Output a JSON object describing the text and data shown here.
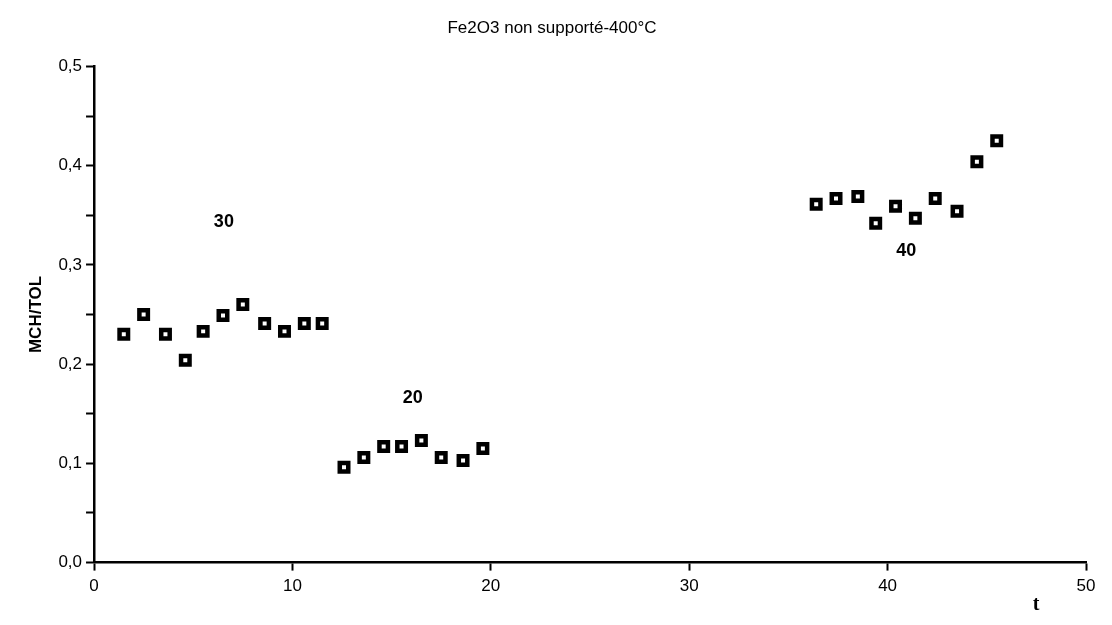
{
  "chart_data": {
    "type": "scatter",
    "title": "Fe2O3 non supporté-400°C",
    "xlabel": "t",
    "ylabel": "MCH/TOL",
    "series": [
      {
        "color": "#000000",
        "x": [
          1.5,
          2.5,
          3.6,
          4.6,
          5.5,
          6.5,
          7.5,
          8.6,
          9.6,
          10.6,
          11.5
        ],
        "values": [
          0.23,
          0.25,
          0.23,
          0.204,
          0.233,
          0.249,
          0.26,
          0.241,
          0.233,
          0.241,
          0.241
        ]
      },
      {
        "color": "#000000",
        "x": [
          12.6,
          13.6,
          14.6,
          15.5,
          16.5,
          17.5,
          18.6,
          19.6
        ],
        "values": [
          0.096,
          0.106,
          0.117,
          0.117,
          0.123,
          0.106,
          0.103,
          0.115
        ]
      },
      {
        "color": "#000000",
        "x": [
          36.4,
          37.4,
          38.5,
          39.4,
          40.4,
          41.4,
          42.4,
          43.5,
          44.5,
          45.5
        ],
        "values": [
          0.361,
          0.367,
          0.369,
          0.342,
          0.359,
          0.347,
          0.367,
          0.354,
          0.404,
          0.425
        ]
      }
    ],
    "annotations": [
      "30",
      "20",
      "40"
    ],
    "xlim": [
      0,
      50
    ],
    "xticks": [
      0,
      10,
      20,
      30,
      40,
      50
    ],
    "ylim": [
      0,
      0.5
    ],
    "yticks": [
      {
        "value": 0,
        "label": "0,0"
      },
      {
        "value": 0.05,
        "label": null
      },
      {
        "value": 0.1,
        "label": "0,1"
      },
      {
        "value": 0.15,
        "label": null
      },
      {
        "value": 0.2,
        "label": "0,2"
      },
      {
        "value": 0.25,
        "label": null
      },
      {
        "value": 0.3,
        "label": "0,3"
      },
      {
        "value": 0.35,
        "label": null
      },
      {
        "value": 0.4,
        "label": "0,4"
      },
      {
        "value": 0.45,
        "label": null
      },
      {
        "value": 0.5,
        "label": "0,5"
      }
    ],
    "grid": false,
    "legend": false,
    "marker": "square"
  }
}
